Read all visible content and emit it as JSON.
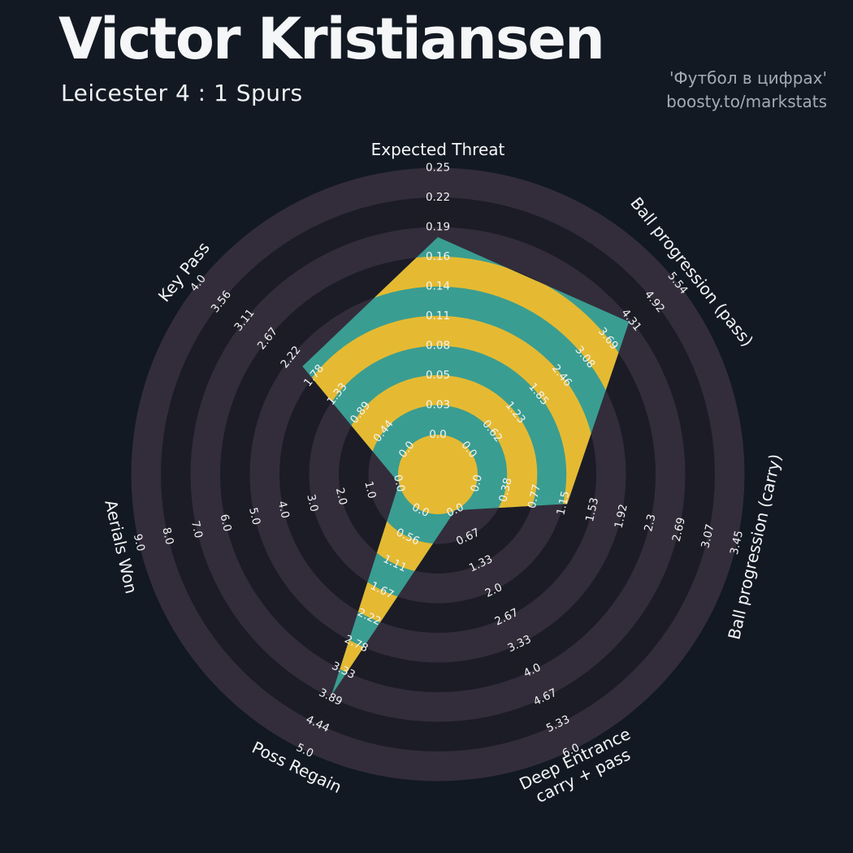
{
  "header": {
    "title": "Victor Kristiansen",
    "subtitle": "Leicester 4 : 1 Spurs",
    "watermark_line1": "'Футбол в цифрах'",
    "watermark_line2": "boosty.to/markstats"
  },
  "chart_data": {
    "type": "radar",
    "title": "Victor Kristiansen",
    "subtitle": "Leicester 4 : 1 Spurs",
    "legend_position": "none",
    "grid": "concentric-circles",
    "rings": 9,
    "start_axis": "top",
    "direction": "clockwise",
    "zero_label": "0.0",
    "axes": [
      {
        "label": "Expected Threat",
        "value": 0.185,
        "axis_min": 0.0,
        "axis_max": 0.25,
        "ticks": [
          "0.03",
          "0.05",
          "0.08",
          "0.11",
          "0.14",
          "0.16",
          "0.19",
          "0.22",
          "0.25"
        ]
      },
      {
        "label": "Ball progression (pass)",
        "value": 4.25,
        "axis_min": 0.0,
        "axis_max": 5.54,
        "ticks": [
          "0.62",
          "1.23",
          "1.85",
          "2.46",
          "3.08",
          "3.69",
          "4.31",
          "4.92",
          "5.54"
        ]
      },
      {
        "label": "Ball progression (carry)",
        "value": 1.2,
        "axis_min": 0.0,
        "axis_max": 3.45,
        "ticks": [
          "0.38",
          "0.77",
          "1.15",
          "1.53",
          "1.92",
          "2.3",
          "2.69",
          "3.07",
          "3.45"
        ]
      },
      {
        "label": "Deep Entrance\ncarry + pass",
        "value": 0.0,
        "axis_min": 0.0,
        "axis_max": 6.0,
        "ticks": [
          "0.67",
          "1.33",
          "2.0",
          "2.67",
          "3.33",
          "4.0",
          "4.67",
          "5.33",
          "6.0"
        ]
      },
      {
        "label": "Poss Regain",
        "value": 3.85,
        "axis_min": 0.0,
        "axis_max": 5.0,
        "ticks": [
          "0.56",
          "1.11",
          "1.67",
          "2.22",
          "2.78",
          "3.33",
          "3.89",
          "4.44",
          "5.0"
        ]
      },
      {
        "label": "Aerials Won",
        "value": 0.0,
        "axis_min": 0.0,
        "axis_max": 9.0,
        "ticks": [
          "1.0",
          "2.0",
          "3.0",
          "4.0",
          "5.0",
          "6.0",
          "7.0",
          "8.0",
          "9.0"
        ]
      },
      {
        "label": "Key Pass",
        "value": 2.0,
        "axis_min": 0.0,
        "axis_max": 4.0,
        "ticks": [
          "0.44",
          "0.89",
          "1.33",
          "1.78",
          "2.22",
          "2.67",
          "3.11",
          "3.56",
          "4.0"
        ]
      }
    ],
    "colors": {
      "background": "#121923",
      "ring_band_light": "#332d3b",
      "ring_band_dark": "#1c1c26",
      "radar_fill": "#3a9d92",
      "inner_ring_fill": "#e5ba32",
      "center_circle_fill": "#e5ba32",
      "tick_text": "#f2f3f4",
      "axis_title_text": "#f5f6f7",
      "title_text": "#f5f6f7",
      "watermark_text": "#a5abb3"
    }
  }
}
